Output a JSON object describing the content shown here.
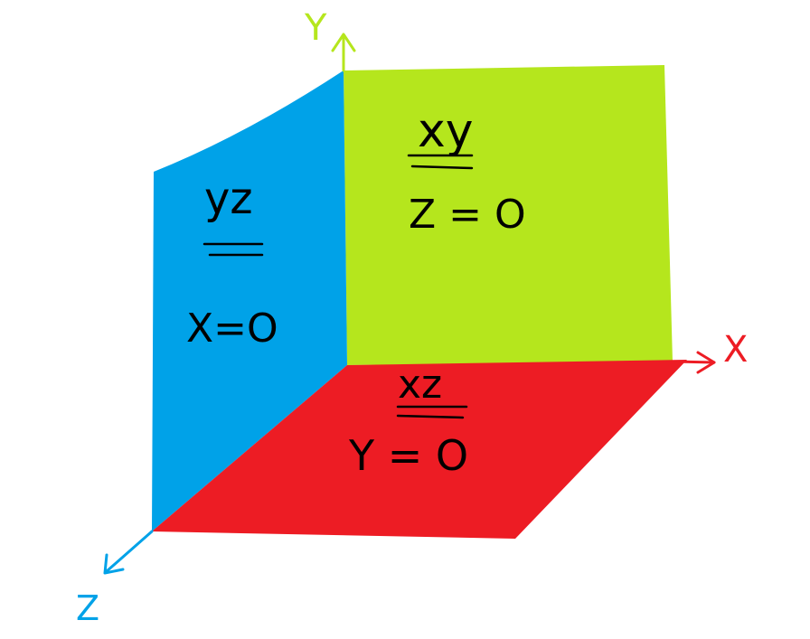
{
  "colors": {
    "background": "#ffffff",
    "xy_plane": "#b5e61d",
    "yz_plane": "#00a2e8",
    "xz_plane": "#ed1c24",
    "x_axis": "#ed1c24",
    "y_axis": "#b5e61d",
    "z_axis": "#00a2e8",
    "ink": "#000000"
  },
  "axes": {
    "x_label": "X",
    "y_label": "Y",
    "z_label": "Z"
  },
  "planes": {
    "xy": {
      "name": "xy",
      "equation": "Z = O"
    },
    "yz": {
      "name": "yz",
      "equation": "X=O"
    },
    "xz": {
      "name": "xz",
      "equation": "Y = O"
    }
  }
}
